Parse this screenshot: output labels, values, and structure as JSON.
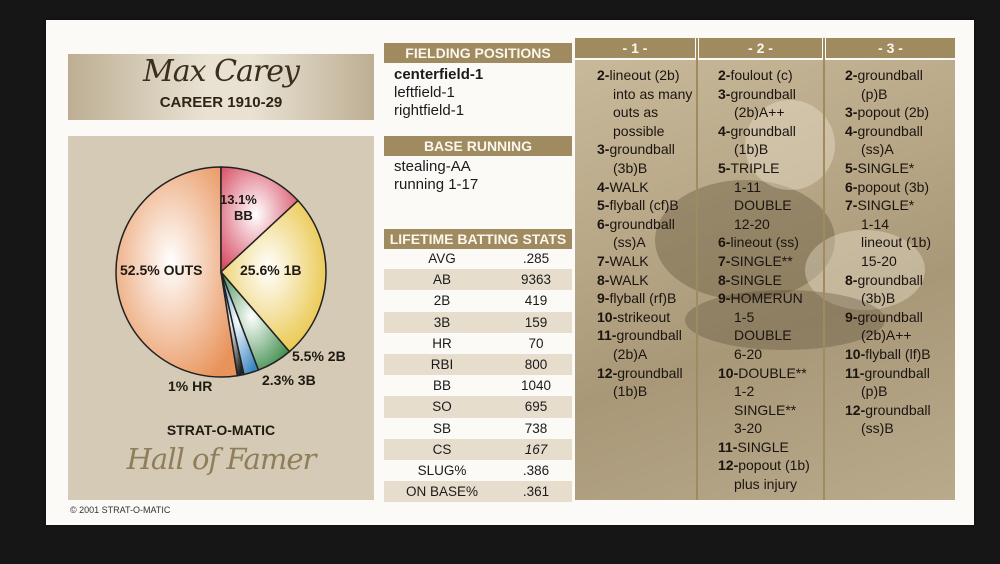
{
  "player": {
    "name": "Max Carey",
    "career": "CAREER 1910-29"
  },
  "pie": {
    "slices": [
      {
        "label": "52.5% OUTS",
        "pct": 52.5,
        "color": "#e8935a"
      },
      {
        "label": "13.1% BB",
        "pct": 13.1,
        "color": "#d64b62"
      },
      {
        "label": "25.6% 1B",
        "pct": 25.6,
        "color": "#e8c23c"
      },
      {
        "label": "5.5% 2B",
        "pct": 5.5,
        "color": "#3d8c4a"
      },
      {
        "label": "2.3% 3B",
        "pct": 2.3,
        "color": "#3a86bf"
      },
      {
        "label": "1% HR",
        "pct": 1.0,
        "color": "#222222"
      }
    ],
    "labels": {
      "outs": "52.5% OUTS",
      "bb_pct": "13.1%",
      "bb": "BB",
      "single": "25.6% 1B",
      "double": "5.5% 2B",
      "triple": "2.3% 3B",
      "hr": "1% HR"
    }
  },
  "brand": "STRAT-O-MATIC",
  "hall_of_famer": "Hall of Famer",
  "copyright": "© 2001 STRAT-O-MATIC",
  "fielding": {
    "header": "FIELDING POSITIONS",
    "primary": "centerfield-1",
    "others": [
      "leftfield-1",
      "rightfield-1"
    ]
  },
  "base_running": {
    "header": "BASE RUNNING",
    "lines": [
      "stealing-AA",
      "running 1-17"
    ]
  },
  "batting": {
    "header": "LIFETIME BATTING STATS",
    "rows": [
      {
        "label": "AVG",
        "value": ".285"
      },
      {
        "label": "AB",
        "value": "9363"
      },
      {
        "label": "2B",
        "value": "419"
      },
      {
        "label": "3B",
        "value": "159"
      },
      {
        "label": "HR",
        "value": "70"
      },
      {
        "label": "RBI",
        "value": "800"
      },
      {
        "label": "BB",
        "value": "1040"
      },
      {
        "label": "SO",
        "value": "695"
      },
      {
        "label": "SB",
        "value": "738"
      },
      {
        "label": "CS",
        "value": "167"
      },
      {
        "label": "SLUG%",
        "value": ".386"
      },
      {
        "label": "ON BASE%",
        "value": ".361"
      }
    ]
  },
  "columns": [
    {
      "header": "- 1 -",
      "lines": [
        {
          "n": "2-",
          "t": "lineout (2b)"
        },
        {
          "n": "",
          "t": "into as many"
        },
        {
          "n": "",
          "t": "outs as"
        },
        {
          "n": "",
          "t": "possible"
        },
        {
          "n": "3-",
          "t": "groundball"
        },
        {
          "n": "",
          "t": "(3b)B"
        },
        {
          "n": "4-",
          "t": "WALK"
        },
        {
          "n": "5-",
          "t": "flyball (cf)B"
        },
        {
          "n": "6-",
          "t": "groundball"
        },
        {
          "n": "",
          "t": "(ss)A"
        },
        {
          "n": "7-",
          "t": "WALK"
        },
        {
          "n": "8-",
          "t": "WALK"
        },
        {
          "n": "9-",
          "t": "flyball (rf)B"
        },
        {
          "n": "10-",
          "t": "strikeout"
        },
        {
          "n": "11-",
          "t": "groundball"
        },
        {
          "n": "",
          "t": "(2b)A"
        },
        {
          "n": "12-",
          "t": "groundball"
        },
        {
          "n": "",
          "t": "(1b)B"
        }
      ]
    },
    {
      "header": "- 2 -",
      "lines": [
        {
          "n": "2-",
          "t": "foulout (c)"
        },
        {
          "n": "3-",
          "t": "groundball"
        },
        {
          "n": "",
          "t": "(2b)A++"
        },
        {
          "n": "4-",
          "t": "groundball"
        },
        {
          "n": "",
          "t": "(1b)B"
        },
        {
          "n": "5-",
          "t": "TRIPLE"
        },
        {
          "n": "",
          "t": "1-11"
        },
        {
          "n": "",
          "t": "DOUBLE"
        },
        {
          "n": "",
          "t": "12-20"
        },
        {
          "n": "6-",
          "t": "lineout (ss)"
        },
        {
          "n": "7-",
          "t": "SINGLE**"
        },
        {
          "n": "8-",
          "t": "SINGLE"
        },
        {
          "n": "9-",
          "t": "HOMERUN"
        },
        {
          "n": "",
          "t": "1-5"
        },
        {
          "n": "",
          "t": "DOUBLE"
        },
        {
          "n": "",
          "t": "6-20"
        },
        {
          "n": "10-",
          "t": "DOUBLE**"
        },
        {
          "n": "",
          "t": "1-2"
        },
        {
          "n": "",
          "t": "SINGLE**"
        },
        {
          "n": "",
          "t": "3-20"
        },
        {
          "n": "11-",
          "t": "SINGLE"
        },
        {
          "n": "12-",
          "t": "popout (1b)"
        },
        {
          "n": "",
          "t": "plus injury"
        }
      ]
    },
    {
      "header": "- 3 -",
      "lines": [
        {
          "n": "2-",
          "t": "groundball"
        },
        {
          "n": "",
          "t": "(p)B"
        },
        {
          "n": "3-",
          "t": "popout (2b)"
        },
        {
          "n": "4-",
          "t": "groundball"
        },
        {
          "n": "",
          "t": "(ss)A"
        },
        {
          "n": "5-",
          "t": "SINGLE*"
        },
        {
          "n": "6-",
          "t": "popout (3b)"
        },
        {
          "n": "7-",
          "t": "SINGLE*"
        },
        {
          "n": "",
          "t": "1-14"
        },
        {
          "n": "",
          "t": "lineout (1b)"
        },
        {
          "n": "",
          "t": "15-20"
        },
        {
          "n": "8-",
          "t": "groundball"
        },
        {
          "n": "",
          "t": "(3b)B"
        },
        {
          "n": "9-",
          "t": "groundball"
        },
        {
          "n": "",
          "t": "(2b)A++"
        },
        {
          "n": "10-",
          "t": "flyball (lf)B"
        },
        {
          "n": "11-",
          "t": "groundball"
        },
        {
          "n": "",
          "t": "(p)B"
        },
        {
          "n": "12-",
          "t": "groundball"
        },
        {
          "n": "",
          "t": "(ss)B"
        }
      ]
    }
  ]
}
